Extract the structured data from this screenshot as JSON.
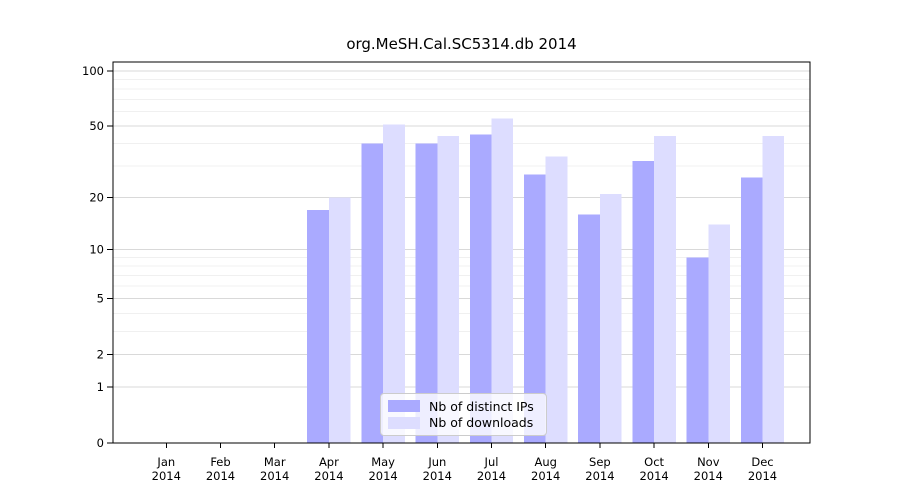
{
  "chart_data": {
    "type": "bar",
    "title": "org.MeSH.Cal.SC5314.db 2014",
    "categories": [
      "Jan",
      "Feb",
      "Mar",
      "Apr",
      "May",
      "Jun",
      "Jul",
      "Aug",
      "Sep",
      "Oct",
      "Nov",
      "Dec"
    ],
    "year_label": "2014",
    "series": [
      {
        "name": "Nb of distinct IPs",
        "color": "#aaaaff",
        "values": [
          0,
          0,
          0,
          17,
          40,
          40,
          45,
          27,
          16,
          32,
          9,
          26
        ]
      },
      {
        "name": "Nb of downloads",
        "color": "#ddddff",
        "values": [
          0,
          0,
          0,
          20,
          51,
          44,
          55,
          34,
          21,
          44,
          14,
          44
        ]
      }
    ],
    "y_scale": "log1p",
    "y_axis_ticks": [
      0,
      1,
      2,
      5,
      10,
      20,
      50,
      100
    ],
    "y_minor_gridlines": [
      3,
      4,
      6,
      7,
      8,
      9,
      30,
      40,
      60,
      70,
      80,
      90
    ],
    "ylim": [
      0,
      112
    ],
    "xlabel": "",
    "ylabel": "",
    "grid": true,
    "legend_position": "bottom-center",
    "colors": {
      "axis": "#000000",
      "major_grid": "#d9d9d9",
      "minor_grid": "#f0f0f0",
      "background": "#ffffff",
      "text": "#000000"
    }
  }
}
